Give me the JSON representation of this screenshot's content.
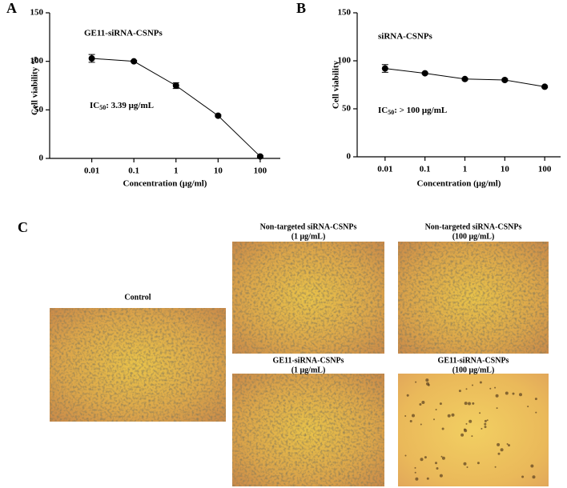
{
  "chart_data": [
    {
      "type": "line",
      "panel_label": "A",
      "annotation": "GE11-siRNA-CSNPs",
      "ic50": {
        "prefix": "IC",
        "subscript": "50",
        "text": ": 3.39 μg/mL"
      },
      "x_label": "Concentration (μg/ml)",
      "y_label": "Cell viability %",
      "x": [
        0.01,
        0.1,
        1,
        10,
        100
      ],
      "values": [
        103,
        100,
        75,
        44,
        2
      ],
      "errors": [
        4,
        1,
        3,
        1,
        1
      ],
      "color": "#000000",
      "log_x": true,
      "xlim": [
        0.001,
        300
      ],
      "xticks": [
        0.01,
        0.1,
        1,
        10,
        100
      ],
      "ylim": [
        0,
        150
      ],
      "yticks": [
        0,
        50,
        100,
        150
      ]
    },
    {
      "type": "line",
      "panel_label": "B",
      "annotation": "siRNA-CSNPs",
      "ic50": {
        "prefix": "IC",
        "subscript": "50",
        "text": ": > 100 μg/mL"
      },
      "x_label": "Concentration (μg/ml)",
      "y_label": "Cell viability",
      "x": [
        0.01,
        0.1,
        1,
        10,
        100
      ],
      "values": [
        92,
        87,
        81,
        80,
        73
      ],
      "errors": [
        4,
        1,
        1,
        1,
        1
      ],
      "color": "#000000",
      "log_x": true,
      "xlim": [
        0.002,
        250
      ],
      "xticks": [
        0.01,
        0.1,
        1,
        10,
        100
      ],
      "ylim": [
        0,
        150
      ],
      "yticks": [
        0,
        50,
        100,
        150
      ]
    }
  ],
  "panel_c": {
    "label": "C",
    "images": [
      {
        "title": "Control"
      },
      {
        "title": "Non-targeted siRNA-CSNPs",
        "subtitle": "(1 μg/mL)"
      },
      {
        "title": "Non-targeted siRNA-CSNPs",
        "subtitle": "(100 μg/mL)"
      },
      {
        "title": "GE11-siRNA-CSNPs",
        "subtitle": "(1 μg/mL)"
      },
      {
        "title": "GE11-siRNA-CSNPs",
        "subtitle": "(100 μg/mL)"
      }
    ]
  }
}
